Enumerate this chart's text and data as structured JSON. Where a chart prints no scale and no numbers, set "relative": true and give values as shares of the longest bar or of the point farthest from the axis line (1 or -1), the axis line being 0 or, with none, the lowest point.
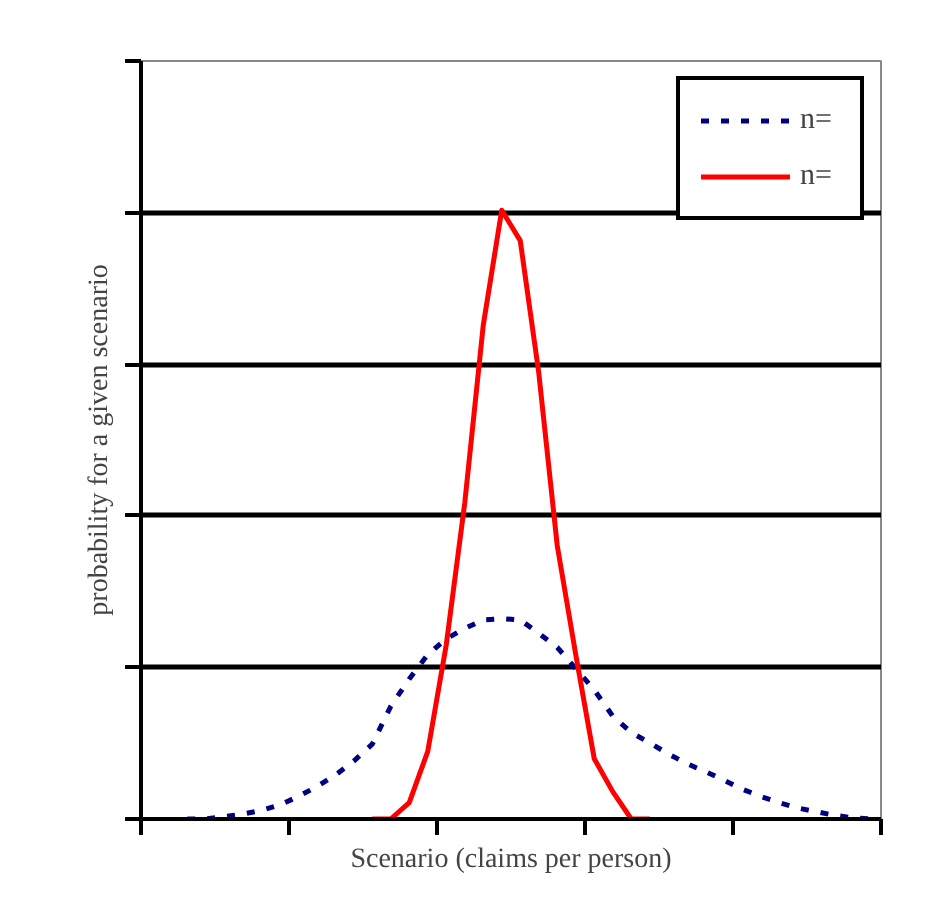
{
  "chart_data": {
    "type": "line",
    "relative": true,
    "xlabel": "Scenario (claims per person)",
    "ylabel": "probability for a given scenario",
    "categories": [
      null,
      null,
      null,
      null,
      null,
      null,
      null,
      null,
      null,
      null,
      null,
      null,
      null,
      null,
      null,
      null,
      null,
      null,
      null,
      null,
      null,
      null,
      null,
      null,
      null,
      null,
      null,
      null,
      null,
      null,
      null,
      null,
      null,
      null,
      null,
      null,
      null,
      null,
      null,
      null
    ],
    "series": [
      {
        "name": "n=",
        "color": "#000080",
        "line_style": "dashed",
        "values": [
          null,
          null,
          0,
          0,
          0.004,
          0.008,
          0.014,
          0.023,
          0.037,
          0.053,
          0.072,
          0.095,
          0.123,
          0.185,
          0.23,
          0.27,
          0.296,
          0.313,
          0.327,
          0.329,
          0.327,
          0.305,
          0.282,
          0.247,
          0.212,
          0.169,
          0.142,
          0.125,
          0.107,
          0.091,
          0.078,
          0.064,
          0.049,
          0.037,
          0.027,
          0.018,
          0.012,
          0.006,
          0.002,
          0
        ]
      },
      {
        "name": "n=",
        "color": "#ff0000",
        "line_style": "solid",
        "values": [
          null,
          null,
          null,
          null,
          null,
          null,
          null,
          null,
          null,
          null,
          null,
          null,
          0,
          0,
          0.027,
          0.111,
          0.286,
          0.519,
          0.811,
          1.0,
          0.95,
          0.733,
          0.449,
          0.27,
          0.099,
          0.045,
          0,
          0,
          null,
          null,
          null,
          null,
          null,
          null,
          null,
          null,
          null,
          null,
          null,
          null
        ]
      }
    ],
    "grid": "y",
    "legend": "top right"
  }
}
